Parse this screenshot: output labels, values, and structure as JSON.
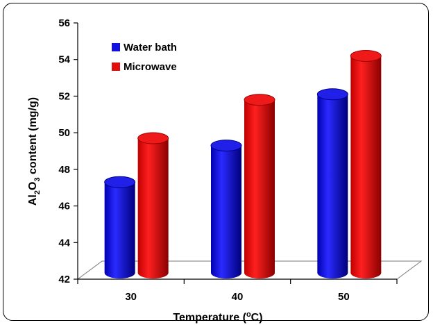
{
  "chart_data": {
    "type": "bar",
    "categories": [
      "30",
      "40",
      "50"
    ],
    "series": [
      {
        "name": "Water bath",
        "color": "#1010e0",
        "values": [
          47.3,
          49.3,
          52.1
        ]
      },
      {
        "name": "Microwave",
        "color": "#e01010",
        "values": [
          49.7,
          51.8,
          54.2
        ]
      }
    ],
    "xlabel": {
      "pre": "Temperature (",
      "sup": "o",
      "post": "C)"
    },
    "ylabel": {
      "t1": "Al",
      "s1": "2",
      "t2": "O",
      "s2": "3",
      "t3": " content  (mg/g)"
    },
    "ylim": [
      42,
      56
    ],
    "yticks": [
      "42",
      "44",
      "46",
      "48",
      "50",
      "52",
      "54",
      "56"
    ],
    "legend_position": "top-left",
    "grid": false,
    "style": "3d-cylinder"
  }
}
